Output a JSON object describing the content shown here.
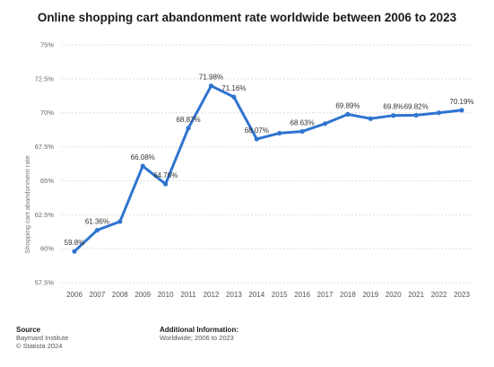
{
  "chart_data": {
    "type": "line",
    "title": "Online shopping cart abandonment rate worldwide between 2006 to 2023",
    "ylabel": "Shopping cart abandonment rate",
    "xlabel": "",
    "ylim": [
      57.5,
      75
    ],
    "yticks": [
      "57.5%",
      "60%",
      "62.5%",
      "65%",
      "67.5%",
      "70%",
      "72.5%",
      "75%"
    ],
    "ytick_values": [
      57.5,
      60,
      62.5,
      65,
      67.5,
      70,
      72.5,
      75
    ],
    "categories": [
      "2006",
      "2007",
      "2008",
      "2009",
      "2010",
      "2011",
      "2012",
      "2013",
      "2014",
      "2015",
      "2016",
      "2017",
      "2018",
      "2019",
      "2020",
      "2021",
      "2022",
      "2023"
    ],
    "values": [
      59.8,
      61.36,
      62.0,
      66.08,
      64.76,
      68.87,
      71.98,
      71.16,
      68.07,
      68.5,
      68.63,
      69.2,
      69.89,
      69.57,
      69.8,
      69.82,
      70.0,
      70.19
    ],
    "labels": [
      "59.8%",
      "61.36%",
      "",
      "66.08%",
      "64.76%",
      "68.87%",
      "71.98%",
      "71.16%",
      "68.07%",
      "",
      "68.63%",
      "",
      "69.89%",
      "",
      "69.8%",
      "69.82%",
      "",
      "70.19%"
    ],
    "grid": true,
    "line_color": "#2f74d0"
  },
  "footer": {
    "source_heading": "Source",
    "source_lines": [
      "Baymard Institute",
      "© Statista 2024"
    ],
    "info_heading": "Additional Information:",
    "info_lines": [
      "Worldwide; 2006 to 2023"
    ]
  }
}
